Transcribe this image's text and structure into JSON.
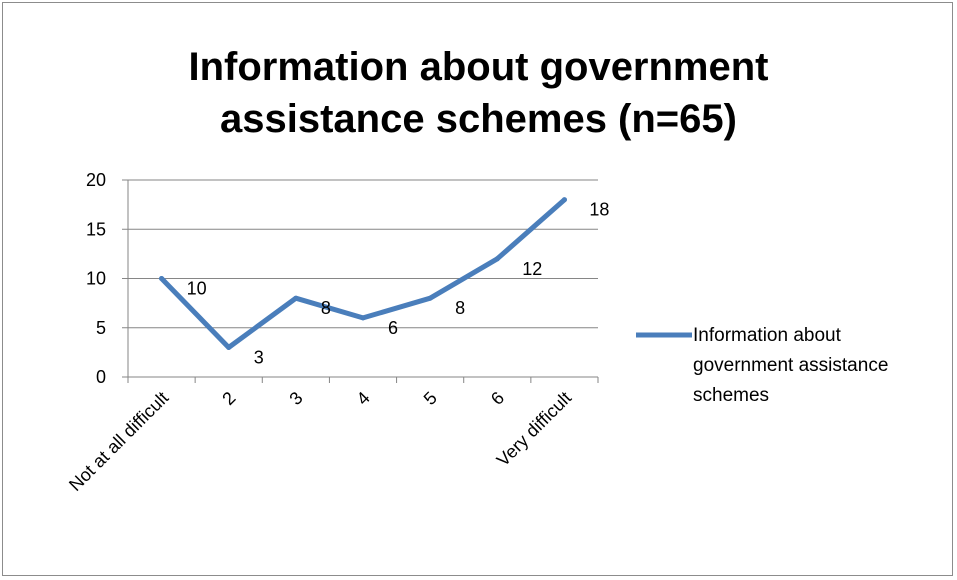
{
  "chart_data": {
    "type": "line",
    "title_line1": "Information about government",
    "title_line2": "assistance schemes (n=65)",
    "categories": [
      "Not at all difficult",
      "2",
      "3",
      "4",
      "5",
      "6",
      "Very difficult"
    ],
    "series": [
      {
        "name": "Information about government assistance schemes",
        "legend_lines": [
          "Information about",
          "government assistance",
          "schemes"
        ],
        "values": [
          10,
          3,
          8,
          6,
          8,
          12,
          18
        ],
        "color": "#4a7ebb"
      }
    ],
    "ylim": [
      0,
      20
    ],
    "yticks": [
      0,
      5,
      10,
      15,
      20
    ],
    "grid": true,
    "legend_position": "right",
    "data_labels": true
  }
}
